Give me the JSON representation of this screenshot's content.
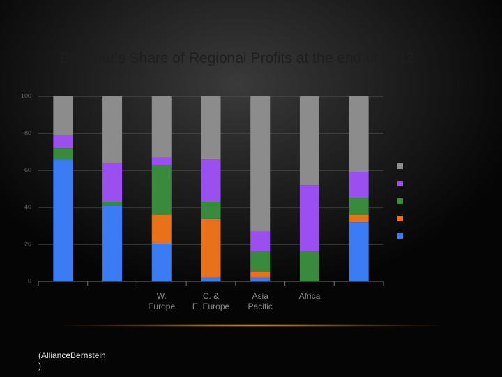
{
  "chart_data": {
    "type": "stacked-bar",
    "title": "Big Four's Share of Regional Profits at the end of 2012",
    "source": "(AllianceBernstein\n)",
    "categories": [
      null,
      null,
      "W. Europe",
      "C. & E. Europe",
      "Asia Pacific",
      "Africa",
      null
    ],
    "series": [
      {
        "color": "#3b7cf4",
        "values": [
          66,
          41,
          20,
          2,
          2,
          0,
          32
        ]
      },
      {
        "color": "#e8711a",
        "values": [
          0,
          0,
          16,
          32,
          3,
          0,
          4
        ]
      },
      {
        "color": "#3a8a3e",
        "values": [
          6,
          2,
          27,
          9,
          11,
          16,
          9
        ]
      },
      {
        "color": "#9b4ff0",
        "values": [
          7,
          21,
          4,
          23,
          11,
          36,
          14
        ]
      },
      {
        "color": "#8c8c8c",
        "values": [
          21,
          36,
          33,
          34,
          73,
          48,
          41
        ]
      }
    ],
    "ylim": [
      0,
      100
    ],
    "yticks": [
      0,
      20,
      40,
      60,
      80,
      100
    ],
    "grid": true
  }
}
